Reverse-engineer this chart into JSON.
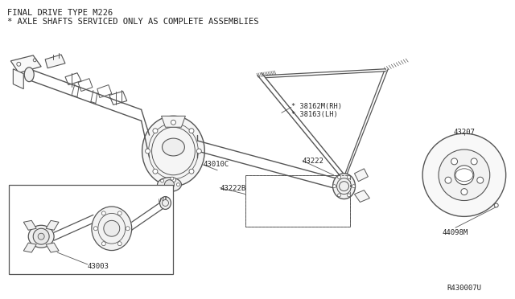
{
  "title_line1": "FINAL DRIVE TYPE M226",
  "title_line2": "* AXLE SHAFTS SERVICED ONLY AS COMPLETE ASSEMBLIES",
  "diagram_id": "R430007U",
  "bg_color": "#ffffff",
  "line_color": "#555555",
  "text_color": "#222222",
  "figsize": [
    6.4,
    3.72
  ],
  "dpi": 100,
  "labels": {
    "38162M": "* 38162M(RH)",
    "38163": "* 38163(LH)",
    "43222": "43222",
    "43010C": "43010C",
    "43222B": "43222B",
    "43003": "43003",
    "43207": "43207",
    "44098M": "44098M"
  }
}
